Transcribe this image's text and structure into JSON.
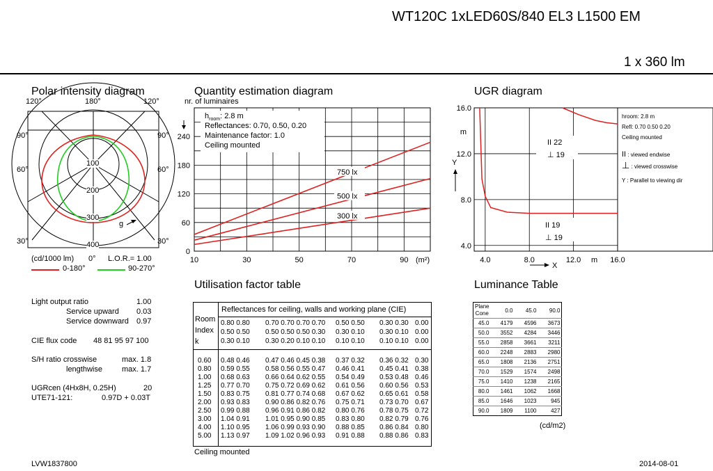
{
  "header": {
    "title": "WT120C 1xLED60S/840 EL3 L1500 EM",
    "flux": "1 x 360 lm"
  },
  "polar": {
    "title": "Polar intensity diagram",
    "angle_labels": [
      "120°",
      "180°",
      "120°",
      "90°",
      "90°",
      "60°",
      "60°",
      "30°",
      "30°"
    ],
    "ring_labels": [
      "100",
      "200",
      "300",
      "400"
    ],
    "unit": "(cd/1000 lm)",
    "zero": "0°",
    "lor": "L.O.R.= 1.00",
    "gamma": "g",
    "legend": [
      {
        "label": "0-180°",
        "color": "#e02020"
      },
      {
        "label": "90-270°",
        "color": "#22cc22"
      }
    ]
  },
  "quantity": {
    "title": "Quantity estimation diagram",
    "ylabel": "nr. of luminaires",
    "xunit": "(m²)",
    "info": [
      "hroom: 2.8 m",
      "Reflectances: 0.70, 0.50, 0.20",
      "Maintenance factor: 1.0",
      "Ceiling mounted"
    ],
    "h_main": "h",
    "h_sub": "room",
    "h_rest": ": 2.8 m"
  },
  "ugr": {
    "title": "UGR diagram",
    "y_ticks": [
      "16.0",
      "12.0",
      "8.0",
      "4.0"
    ],
    "x_ticks": [
      "4.0",
      "8.0",
      "12.0",
      "16.0"
    ],
    "y_unit": "m",
    "x_unit": "m",
    "y_axis": "Y",
    "x_axis": "X",
    "labels": [
      "II 22",
      "⊥ 19",
      "II 19",
      "⊥ 19"
    ],
    "legend": [
      "hroom: 2.8 m",
      "Refl: 0.70 0.50 0.20",
      "Ceiling mounted",
      ": viewed endwise",
      ": viewed crosswise",
      "Y : Parallel to viewing dir"
    ]
  },
  "specs": {
    "rows": [
      {
        "label": "Light output ratio",
        "value": "1.00"
      },
      {
        "label": "Service upward",
        "value": "0.03"
      },
      {
        "label": "Service downward",
        "value": "0.97"
      },
      {
        "label": "CIE flux code",
        "value": "48 81 95 97 100"
      },
      {
        "label": "S/H ratio crosswise",
        "value": "max. 1.8"
      },
      {
        "label": "lengthwise",
        "value": "max. 1.7"
      },
      {
        "label": "UGRcen (4Hx8H, 0.25H)",
        "value": "20"
      },
      {
        "label": "UTE71-121:",
        "value": "0.97D + 0.03T"
      }
    ]
  },
  "utilisation": {
    "title": "Utilisation factor table",
    "header": "Reflectances for ceiling, walls and working plane (CIE)",
    "room_label": [
      "Room",
      "Index",
      "k"
    ],
    "refl_rows": [
      [
        "0.80 0.80",
        "0.70 0.70 0.70 0.70",
        "0.50 0.50",
        "0.30 0.30",
        "0.00"
      ],
      [
        "0.50 0.50",
        "0.50 0.50 0.50 0.30",
        "0.30 0.10",
        "0.30 0.10",
        "0.00"
      ],
      [
        "0.30 0.10",
        "0.30 0.20 0.10 0.10",
        "0.10 0.10",
        "0.10 0.10",
        "0.00"
      ]
    ],
    "rows": [
      [
        "0.60",
        "0.48 0.46",
        "0.47 0.46 0.45 0.38",
        "0.37 0.32",
        "0.36 0.32",
        "0.30"
      ],
      [
        "0.80",
        "0.59 0.55",
        "0.58 0.56 0.55 0.47",
        "0.46 0.41",
        "0.45 0.41",
        "0.38"
      ],
      [
        "1.00",
        "0.68 0.63",
        "0.66 0.64 0.62 0.55",
        "0.54 0.49",
        "0.53 0.48",
        "0.46"
      ],
      [
        "1.25",
        "0.77 0.70",
        "0.75 0.72 0.69 0.62",
        "0.61 0.56",
        "0.60 0.56",
        "0.53"
      ],
      [
        "1.50",
        "0.83 0.75",
        "0.81 0.77 0.74 0.68",
        "0.67 0.62",
        "0.65 0.61",
        "0.58"
      ],
      [
        "2.00",
        "0.93 0.83",
        "0.90 0.86 0.82 0.76",
        "0.75 0.71",
        "0.73 0.70",
        "0.67"
      ],
      [
        "2.50",
        "0.99 0.88",
        "0.96 0.91 0.86 0.82",
        "0.80 0.76",
        "0.78 0.75",
        "0.72"
      ],
      [
        "3.00",
        "1.04 0.91",
        "1.01 0.95 0.90 0.85",
        "0.83 0.80",
        "0.82 0.79",
        "0.76"
      ],
      [
        "4.00",
        "1.10 0.95",
        "1.06 0.99 0.93 0.90",
        "0.88 0.85",
        "0.86 0.84",
        "0.80"
      ],
      [
        "5.00",
        "1.13 0.97",
        "1.09 1.02 0.96 0.93",
        "0.91 0.88",
        "0.88 0.86",
        "0.83"
      ]
    ],
    "footer": "Ceiling mounted"
  },
  "luminance": {
    "title": "Luminance Table",
    "plane": "Plane",
    "cone": "Cone",
    "columns": [
      "0.0",
      "45.0",
      "90.0"
    ],
    "rows": [
      [
        "45.0",
        "4179",
        "4596",
        "3673"
      ],
      [
        "50.0",
        "3552",
        "4284",
        "3446"
      ],
      [
        "55.0",
        "2858",
        "3661",
        "3211"
      ],
      [
        "60.0",
        "2248",
        "2883",
        "2980"
      ],
      [
        "65.0",
        "1808",
        "2136",
        "2751"
      ],
      [
        "70.0",
        "1529",
        "1574",
        "2498"
      ],
      [
        "75.0",
        "1410",
        "1238",
        "2165"
      ],
      [
        "80.0",
        "1461",
        "1062",
        "1668"
      ],
      [
        "85.0",
        "1646",
        "1023",
        "945"
      ],
      [
        "90.0",
        "1809",
        "1100",
        "427"
      ]
    ],
    "unit": "(cd/m2)"
  },
  "footer": {
    "code": "LVW1837800",
    "date": "2014-08-01"
  },
  "chart_data": [
    {
      "type": "line",
      "title": "Quantity estimation diagram",
      "ylabel": "nr. of luminaires",
      "xlabel": "(m²)",
      "x_ticks": [
        10,
        30,
        50,
        70,
        90
      ],
      "y_ticks": [
        0,
        60,
        120,
        180,
        240
      ],
      "xlim": [
        10,
        100
      ],
      "ylim": [
        0,
        300
      ],
      "series": [
        {
          "name": "750 lx",
          "x": [
            10,
            100
          ],
          "y": [
            35,
            228
          ]
        },
        {
          "name": "500 lx",
          "x": [
            10,
            100
          ],
          "y": [
            23,
            152
          ]
        },
        {
          "name": "300 lx",
          "x": [
            10,
            100
          ],
          "y": [
            14,
            90
          ]
        }
      ]
    },
    {
      "type": "line",
      "title": "UGR diagram",
      "xlim": [
        3.0,
        16.0
      ],
      "ylim": [
        3.5,
        16.0
      ],
      "x_ticks": [
        4.0,
        8.0,
        12.0,
        16.0
      ],
      "y_ticks": [
        4.0,
        8.0,
        12.0,
        16.0
      ],
      "series": [
        {
          "x": [
            3.5,
            3.7,
            4.0,
            4.5,
            6.0,
            8.0,
            12.0,
            16.0
          ],
          "y": [
            16.0,
            9.8,
            8.3,
            7.3,
            6.9,
            6.8,
            6.8,
            6.8
          ]
        },
        {
          "x": [
            11.0,
            12.5,
            14.0,
            15.0,
            16.0
          ],
          "y": [
            16.0,
            15.4,
            14.9,
            14.7,
            14.6
          ]
        }
      ]
    }
  ]
}
